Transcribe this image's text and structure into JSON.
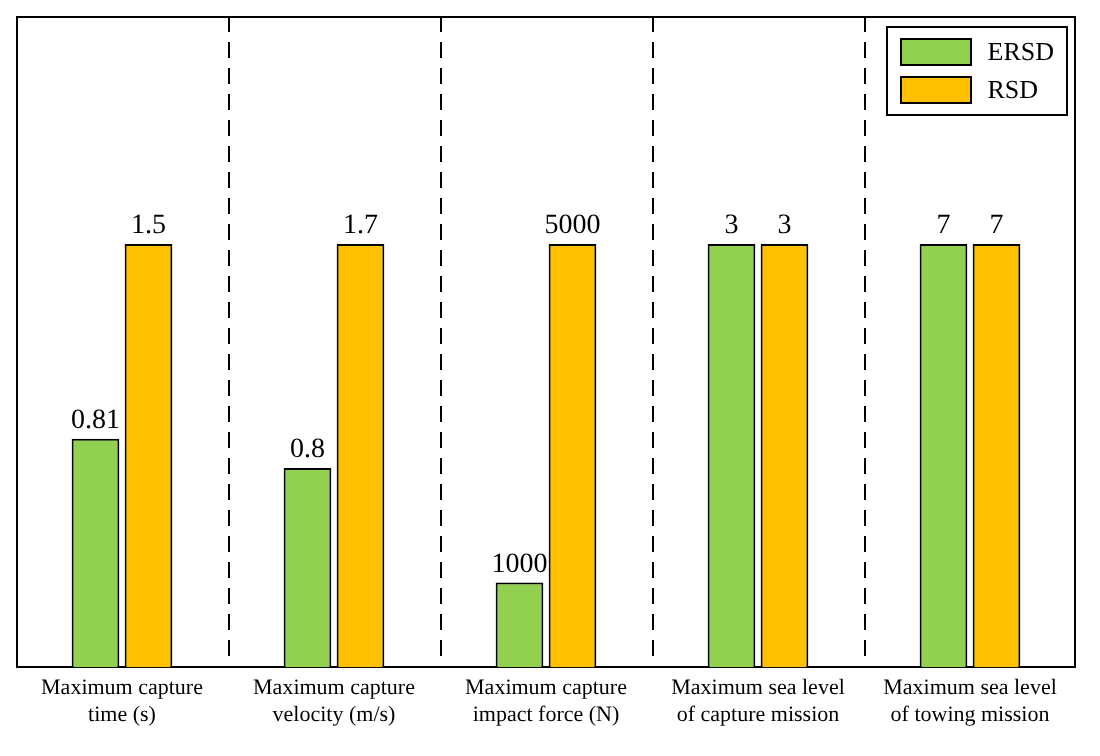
{
  "chart_data": [
    {
      "type": "bar",
      "categories": [
        "Maximum capture time (s)"
      ],
      "series": [
        {
          "color": "#92d050",
          "values": [
            0.81
          ]
        },
        {
          "color": "#ffc000",
          "values": [
            1.5
          ]
        }
      ],
      "data_labels": true
    },
    {
      "type": "bar",
      "categories": [
        "Maximum capture velocity (m/s)"
      ],
      "series": [
        {
          "color": "#92d050",
          "values": [
            0.8
          ]
        },
        {
          "color": "#ffc000",
          "values": [
            1.7
          ]
        }
      ],
      "data_labels": true
    },
    {
      "type": "bar",
      "categories": [
        "Maximum capture impact force (N)"
      ],
      "series": [
        {
          "color": "#92d050",
          "values": [
            1000
          ]
        },
        {
          "color": "#ffc000",
          "values": [
            5000
          ]
        }
      ],
      "data_labels": true
    },
    {
      "type": "bar",
      "categories": [
        "Maximum sea level of capture mission"
      ],
      "series": [
        {
          "color": "#92d050",
          "values": [
            3
          ]
        },
        {
          "color": "#ffc000",
          "values": [
            3
          ]
        }
      ],
      "data_labels": true
    },
    {
      "type": "bar",
      "categories": [
        "Maximum sea level of towing mission"
      ],
      "series": [
        {
          "name": "ERSD",
          "color": "#92d050",
          "values": [
            7
          ]
        },
        {
          "name": "RSD",
          "color": "#ffc000",
          "values": [
            7
          ]
        }
      ],
      "data_labels": true,
      "legend": "top right"
    }
  ]
}
